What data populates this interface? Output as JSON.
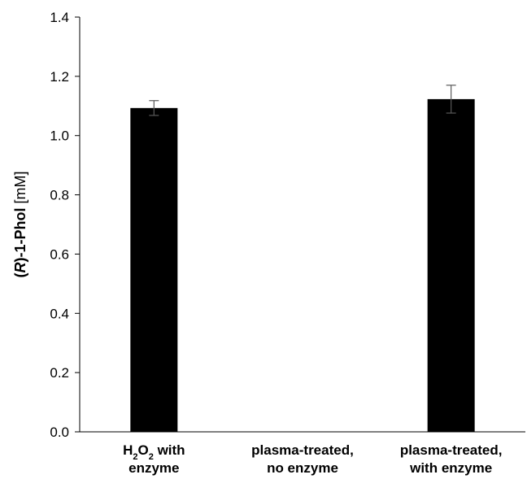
{
  "chart_data": {
    "type": "bar",
    "categories": [
      {
        "lines": [
          {
            "main": "H",
            "sub1": "2",
            "mid": "O",
            "sub2": "2",
            "rest": " with"
          },
          {
            "text": "enzyme"
          }
        ]
      },
      {
        "lines": [
          {
            "text": "plasma-treated,"
          },
          {
            "text": "no enzyme"
          }
        ]
      },
      {
        "lines": [
          {
            "text": "plasma-treated,"
          },
          {
            "text": "with enzyme"
          }
        ]
      }
    ],
    "values": [
      1.093,
      0.0,
      1.123
    ],
    "errors": [
      0.025,
      0.0,
      0.047
    ],
    "ylabel": {
      "open": "(",
      "italic": "R",
      "rest": ")-1-Phol",
      "unit": " [mM]"
    },
    "ylim": [
      0,
      1.4
    ],
    "yticks": [
      "0.0",
      "0.2",
      "0.4",
      "0.6",
      "0.8",
      "1.0",
      "1.2",
      "1.4"
    ],
    "bar_color": "#000000",
    "error_color": "#595959",
    "axis_color": "#000000",
    "grid": false,
    "legend": "none"
  }
}
